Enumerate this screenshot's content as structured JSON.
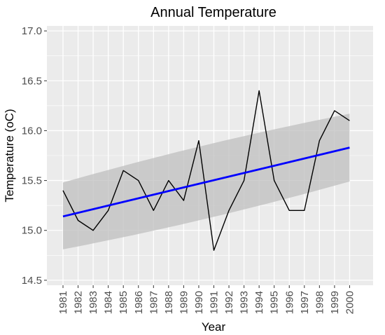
{
  "chart_data": {
    "type": "line",
    "title": "Annual Temperature",
    "xlabel": "Year",
    "ylabel": "Temperature (oC)",
    "x": [
      "1981",
      "1982",
      "1983",
      "1984",
      "1985",
      "1986",
      "1987",
      "1988",
      "1989",
      "1990",
      "1991",
      "1992",
      "1993",
      "1994",
      "1995",
      "1996",
      "1997",
      "1998",
      "1999",
      "2000"
    ],
    "series": [
      {
        "values": [
          15.4,
          15.1,
          15.0,
          15.2,
          15.6,
          15.5,
          15.2,
          15.5,
          15.3,
          15.9,
          14.8,
          15.2,
          15.5,
          16.4,
          15.5,
          15.2,
          15.2,
          15.9,
          16.2,
          16.1
        ],
        "color": "#000000"
      }
    ],
    "trend": {
      "type": "linear",
      "start": 15.14,
      "end": 15.83,
      "color": "#0000ff",
      "ci_band": {
        "upper_start": 15.48,
        "upper_end": 16.17,
        "lower_start": 14.81,
        "lower_end": 15.49,
        "color": "#bdbdbd"
      }
    },
    "yticks": [
      14.5,
      15.0,
      15.5,
      16.0,
      16.5,
      17.0
    ],
    "ylim": [
      14.45,
      17.05
    ],
    "grid": true,
    "panel_color": "#ebebeb"
  }
}
